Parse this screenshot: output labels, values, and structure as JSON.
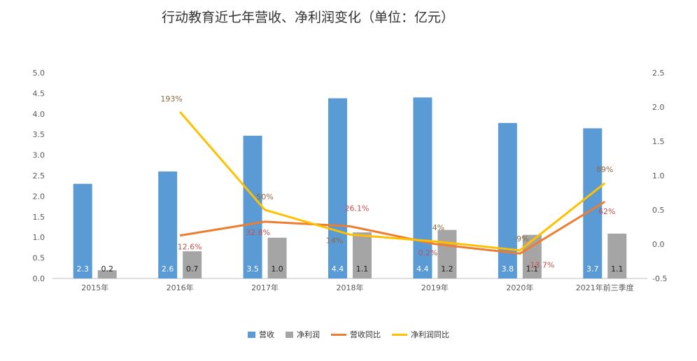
{
  "chart_data": {
    "type": "bar",
    "title": "行动教育近七年营收、净利润变化（单位：亿元）",
    "categories": [
      "2015年",
      "2016年",
      "2017年",
      "2018年",
      "2019年",
      "2020年",
      "2021年前三季度"
    ],
    "left_axis": {
      "min": 0,
      "max": 5.0,
      "ticks": [
        "0.0",
        "0.5",
        "1.0",
        "1.5",
        "2.0",
        "2.5",
        "3.0",
        "3.5",
        "4.0",
        "4.5",
        "5.0"
      ]
    },
    "right_axis": {
      "min": -0.5,
      "max": 2.5,
      "ticks": [
        "-0.5",
        "0.0",
        "0.5",
        "1.0",
        "1.5",
        "2.0",
        "2.5"
      ]
    },
    "grid": false,
    "legend_position": "bottom",
    "series": [
      {
        "name": "营收",
        "kind": "bar",
        "axis": "left",
        "color": "#5B9BD5",
        "values": [
          2.3,
          2.6,
          3.47,
          4.38,
          4.4,
          3.78,
          3.65
        ],
        "labels": [
          "2.3",
          "2.6",
          "3.5",
          "4.4",
          "4.4",
          "3.8",
          "3.7"
        ]
      },
      {
        "name": "净利润",
        "kind": "bar",
        "axis": "left",
        "color": "#A5A5A5",
        "values": [
          0.2,
          0.66,
          0.99,
          1.12,
          1.18,
          1.06,
          1.09
        ],
        "labels": [
          "0.2",
          "0.7",
          "1.0",
          "1.1",
          "1.2",
          "1.1",
          "1.1"
        ]
      },
      {
        "name": "营收同比",
        "kind": "line",
        "axis": "right",
        "color": "#ED7D31",
        "values": [
          null,
          0.126,
          0.328,
          0.261,
          0.002,
          -0.137,
          0.62
        ],
        "labels": [
          "",
          "12.6%",
          "32.8%",
          "26.1%",
          "0.2%",
          "-13.7%",
          "62%"
        ]
      },
      {
        "name": "净利润同比",
        "kind": "line",
        "axis": "right",
        "color": "#FFC000",
        "values": [
          null,
          1.93,
          0.5,
          0.14,
          0.04,
          -0.09,
          0.89
        ],
        "labels": [
          "",
          "193%",
          "50%",
          "14%",
          "4%",
          "-9%",
          "89%"
        ]
      }
    ]
  }
}
